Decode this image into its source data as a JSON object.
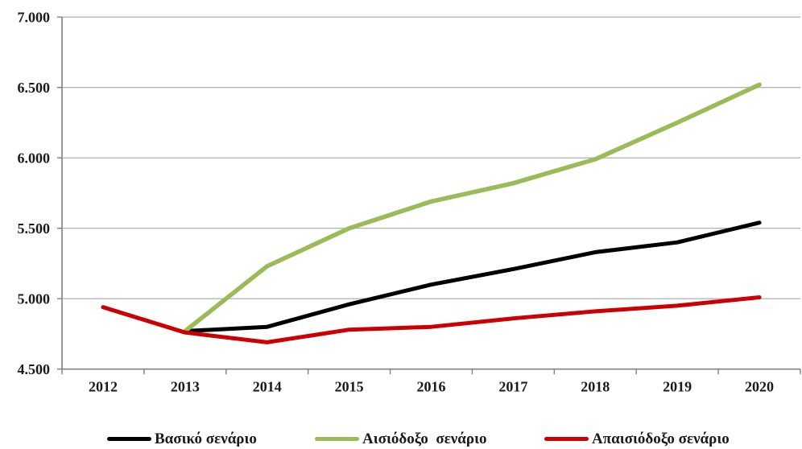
{
  "chart_data": {
    "type": "line",
    "title": "",
    "xlabel": "",
    "ylabel": "",
    "categories": [
      "2012",
      "2013",
      "2014",
      "2015",
      "2016",
      "2017",
      "2018",
      "2019",
      "2020"
    ],
    "series": [
      {
        "name": "Βασικό σενάριο",
        "color": "#000000",
        "stroke_width": 5,
        "values": [
          null,
          4.77,
          4.8,
          4.96,
          5.1,
          5.21,
          5.33,
          5.4,
          5.54
        ]
      },
      {
        "name": "Αισιόδοξο  σενάριο",
        "color": "#9BBB59",
        "stroke_width": 5.5,
        "values": [
          null,
          4.77,
          5.23,
          5.5,
          5.69,
          5.82,
          5.99,
          6.25,
          6.52
        ]
      },
      {
        "name": "Απαισιόδοξο σενάριο",
        "color": "#CC0000",
        "stroke_width": 5,
        "values": [
          4.94,
          4.76,
          4.69,
          4.78,
          4.8,
          4.86,
          4.91,
          4.95,
          5.01
        ]
      }
    ],
    "ylim": [
      4.5,
      7.0
    ],
    "yticks": [
      4.5,
      5.0,
      5.5,
      6.0,
      6.5,
      7.0
    ],
    "ytick_labels": [
      "4.500",
      "5.000",
      "5.500",
      "6.000",
      "6.500",
      "7.000"
    ],
    "number_format": "dot thousands separator",
    "grid": true,
    "legend_position": "bottom",
    "grid_color": "#A6A6A6",
    "axis_color": "#808080",
    "text_color": "#1A1A1A"
  }
}
